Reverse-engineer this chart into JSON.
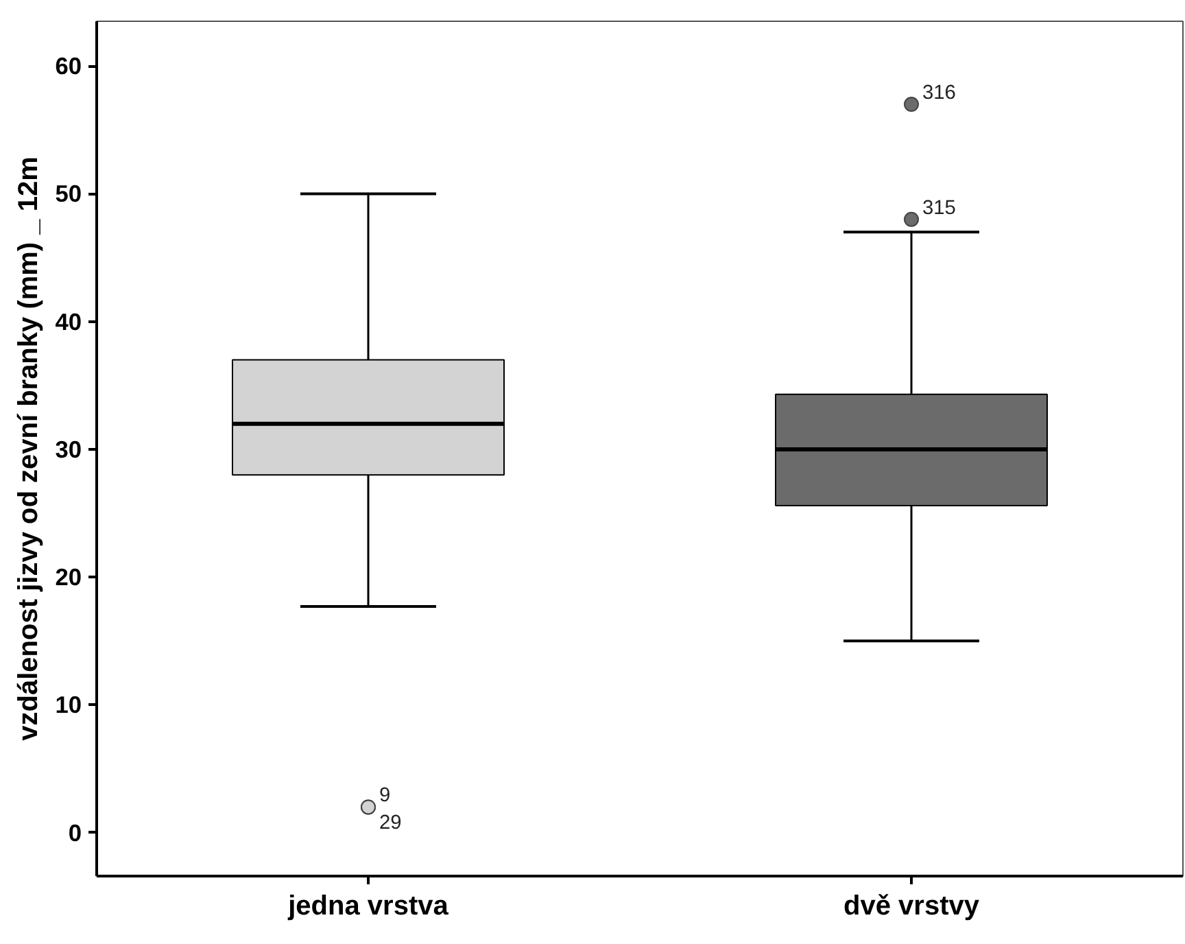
{
  "chart_data": {
    "type": "box",
    "ylabel": "vzdálenost jizvy od zevní branky (mm) _ 12m",
    "categories": [
      "jedna vrstva",
      "dvě vrstvy"
    ],
    "colors": [
      "#d3d3d3",
      "#6b6b6b"
    ],
    "boxes": [
      {
        "low": 17.7,
        "q1": 28,
        "median": 32,
        "q3": 37,
        "high": 50,
        "outliers": [
          2,
          2
        ]
      },
      {
        "low": 15,
        "q1": 25.6,
        "median": 30,
        "q3": 34.3,
        "high": 47,
        "outliers": [
          48,
          57
        ]
      }
    ],
    "ylim": [
      -3.4,
      63.5
    ],
    "yticks": [
      0,
      10,
      20,
      30,
      40,
      50,
      60
    ],
    "grid": false,
    "annotations": [
      "9",
      "29",
      "315",
      "316"
    ]
  }
}
